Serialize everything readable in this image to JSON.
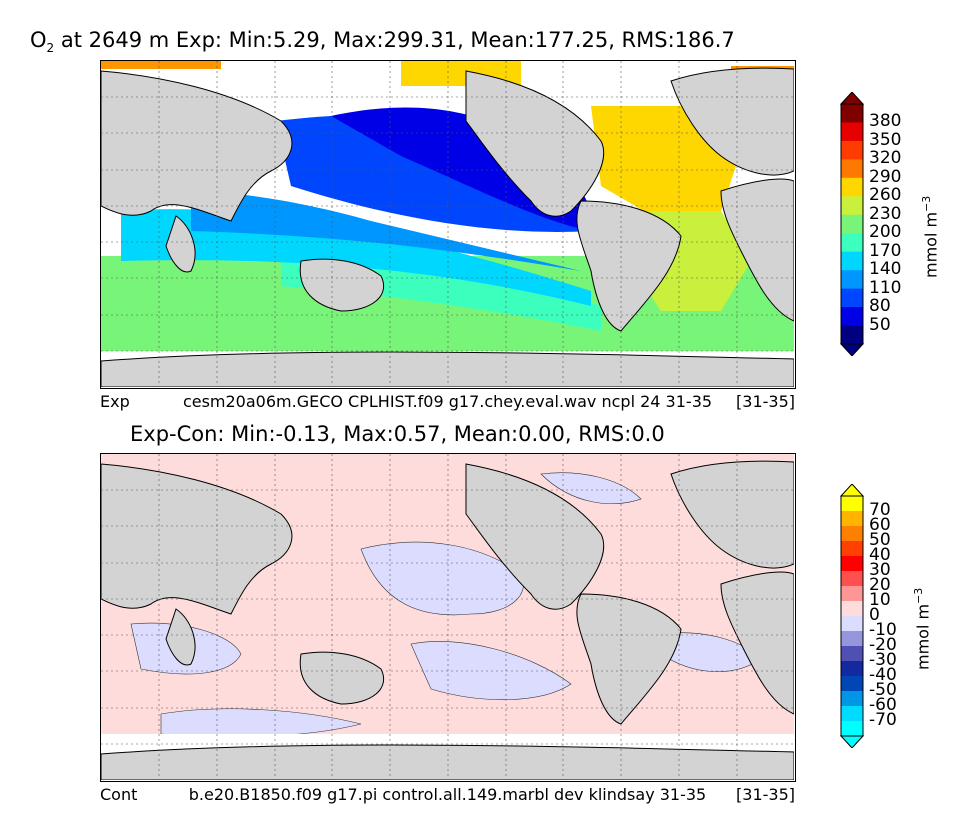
{
  "panels": [
    {
      "title_main": "O",
      "title_sub": "2",
      "title_rest": " at 2649 m Exp: Min:5.29, Max:299.31, Mean:177.25, RMS:186.7",
      "caption_left": "Exp",
      "caption_overlay": "cesm20a06m.GECO CPLHIST.f09 g17.chey.eval.wav ncpl 24 31-35",
      "caption_right": "[31-35]",
      "colorbar": {
        "unit": "mmol m",
        "unit_sup": "−3",
        "ticks": [
          "380",
          "350",
          "320",
          "290",
          "260",
          "230",
          "200",
          "170",
          "140",
          "110",
          "80",
          "50"
        ],
        "colors": [
          "#800000",
          "#e60000",
          "#ff3c00",
          "#ff7800",
          "#ffd700",
          "#c8f03c",
          "#78f578",
          "#3cffbe",
          "#00d7ff",
          "#0096ff",
          "#0046ff",
          "#0000e6",
          "#000080"
        ]
      }
    },
    {
      "title_main": "Exp-Con: Min:-0.13, Max:0.57, Mean:0.00, RMS:0.0",
      "caption_left": "Cont",
      "caption_overlay": "b.e20.B1850.f09 g17.pi control.all.149.marbl dev klindsay 31-35",
      "caption_right": "[31-35]",
      "colorbar": {
        "unit": "mmol m",
        "unit_sup": "−3",
        "ticks": [
          "70",
          "60",
          "50",
          "40",
          "30",
          "20",
          "10",
          "0",
          "-10",
          "-20",
          "-30",
          "-40",
          "-50",
          "-60",
          "-70"
        ],
        "colors": [
          "#ffff00",
          "#ffb400",
          "#ff8000",
          "#ff4000",
          "#ff0000",
          "#ff5050",
          "#ff9696",
          "#ffdcdc",
          "#dcdcff",
          "#9696dc",
          "#5050b4",
          "#1428a0",
          "#0046b4",
          "#0096e6",
          "#00dcff",
          "#00ffff"
        ]
      }
    }
  ],
  "chart_data": [
    {
      "type": "heatmap",
      "title": "O2 at 2649 m Exp: Min:5.29, Max:299.31, Mean:177.25, RMS:186.7",
      "colorbar_label": "mmol m-3",
      "colorbar_ticks": [
        50,
        80,
        110,
        140,
        170,
        200,
        230,
        260,
        290,
        320,
        350,
        380
      ],
      "range": [
        5.29,
        299.31
      ],
      "stats": {
        "min": 5.29,
        "max": 299.31,
        "mean": 177.25,
        "rms": 186.7
      },
      "grid": true
    },
    {
      "type": "heatmap",
      "title": "Exp-Con: Min:-0.13, Max:0.57, Mean:0.00, RMS:0.0",
      "colorbar_label": "mmol m-3",
      "colorbar_ticks": [
        -70,
        -60,
        -50,
        -40,
        -30,
        -20,
        -10,
        0,
        10,
        20,
        30,
        40,
        50,
        60,
        70
      ],
      "range": [
        -0.13,
        0.57
      ],
      "stats": {
        "min": -0.13,
        "max": 0.57,
        "mean": 0.0,
        "rms": 0.0
      },
      "grid": true
    }
  ]
}
